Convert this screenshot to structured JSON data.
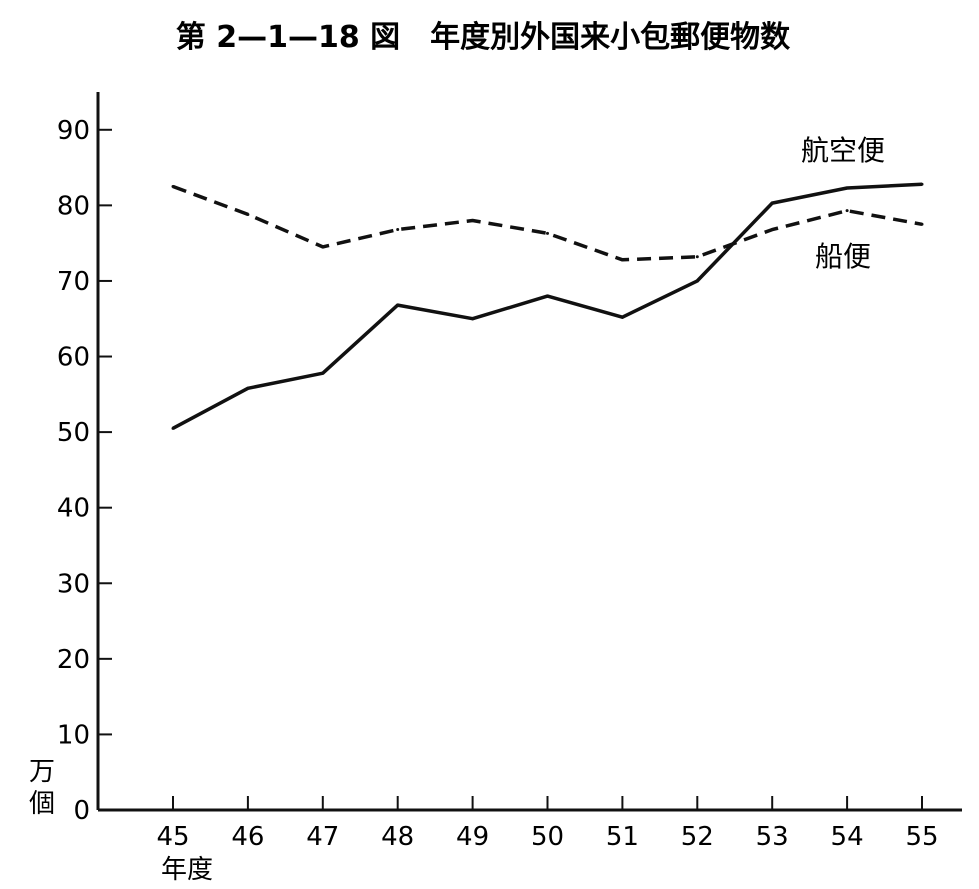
{
  "chart_data": {
    "type": "line",
    "title": "第 2—1—18 図　年度別外国来小包郵便物数",
    "xlabel": "年度",
    "ylabel": "万個",
    "ylabel_chars": [
      "万",
      "個"
    ],
    "x": [
      "45",
      "46",
      "47",
      "48",
      "49",
      "50",
      "51",
      "52",
      "53",
      "54",
      "55"
    ],
    "ylim": [
      0,
      95
    ],
    "yticks": [
      0,
      10,
      20,
      30,
      40,
      50,
      60,
      70,
      80,
      90
    ],
    "grid": false,
    "series": [
      {
        "name": "航空便",
        "style": "solid",
        "color": "#111111",
        "values": [
          50.5,
          55.8,
          57.8,
          66.8,
          65.0,
          68.0,
          65.2,
          70.0,
          80.3,
          82.3,
          82.8
        ]
      },
      {
        "name": "船便",
        "style": "dashed",
        "color": "#111111",
        "values": [
          82.5,
          78.8,
          74.5,
          76.8,
          78.0,
          76.3,
          72.8,
          73.2,
          76.8,
          79.3,
          77.5
        ]
      }
    ]
  }
}
